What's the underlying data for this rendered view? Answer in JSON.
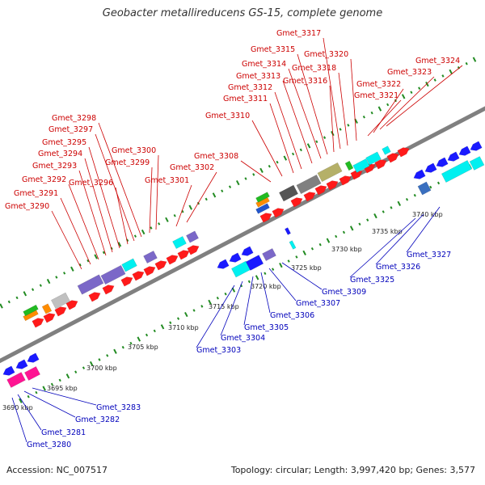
{
  "title": "Geobacter metallireducens GS-15, complete genome",
  "footer": {
    "accession": "Accession: NC_007517",
    "summary": "Topology: circular; Length: 3,997,420 bp; Genes: 3,577"
  },
  "colors": {
    "forward_label": "#cc0000",
    "reverse_label": "#0000bb",
    "backbone": "#808080",
    "tick": "#228b22"
  },
  "scale_labels": [
    "3690 kbp",
    "3695 kbp",
    "3700 kbp",
    "3705 kbp",
    "3710 kbp",
    "3715 kbp",
    "3720 kbp",
    "3725 kbp",
    "3730 kbp",
    "3735 kbp",
    "3740 kbp"
  ],
  "forward_genes": [
    "Gmet_3290",
    "Gmet_3291",
    "Gmet_3292",
    "Gmet_3293",
    "Gmet_3294",
    "Gmet_3295",
    "Gmet_3296",
    "Gmet_3297",
    "Gmet_3298",
    "Gmet_3299",
    "Gmet_3300",
    "Gmet_3301",
    "Gmet_3302",
    "Gmet_3308",
    "Gmet_3310",
    "Gmet_3311",
    "Gmet_3312",
    "Gmet_3313",
    "Gmet_3314",
    "Gmet_3315",
    "Gmet_3316",
    "Gmet_3317",
    "Gmet_3318",
    "Gmet_3320",
    "Gmet_3321",
    "Gmet_3322",
    "Gmet_3323",
    "Gmet_3324"
  ],
  "reverse_genes": [
    "Gmet_3280",
    "Gmet_3281",
    "Gmet_3282",
    "Gmet_3283",
    "Gmet_3303",
    "Gmet_3304",
    "Gmet_3305",
    "Gmet_3306",
    "Gmet_3307",
    "Gmet_3309",
    "Gmet_3325",
    "Gmet_3326",
    "Gmet_3327"
  ]
}
